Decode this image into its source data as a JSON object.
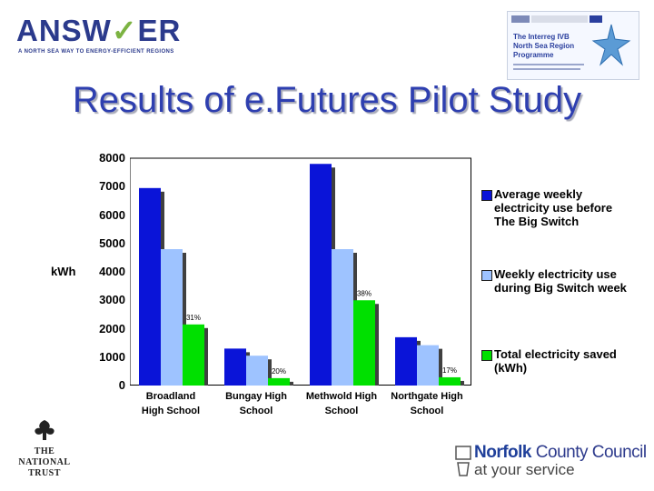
{
  "header": {
    "logo_word": "ANSW",
    "logo_word_v": "✓",
    "logo_word_end": "ER",
    "logo_tagline": "A NORTH SEA WAY TO ENERGY-EFFICIENT REGIONS",
    "interreg_title": "The Interreg IVB North Sea Region Programme"
  },
  "slide": {
    "title": "Results of e.Futures Pilot Study"
  },
  "footer": {
    "national_trust": [
      "THE",
      "NATIONAL",
      "TRUST"
    ],
    "ncc_main_bold": "Norfolk",
    "ncc_main_rest": " County Council",
    "ncc_sub": "at your service"
  },
  "colors": {
    "before": "#0a14d8",
    "during": "#9ec3ff",
    "saved": "#00e000"
  },
  "chart_data": {
    "type": "bar",
    "ylabel": "kWh",
    "ylim": [
      0,
      8000
    ],
    "yticks": [
      "0",
      "1000",
      "2000",
      "3000",
      "4000",
      "5000",
      "6000",
      "7000",
      "8000"
    ],
    "ytick_values": [
      0,
      1000,
      2000,
      3000,
      4000,
      5000,
      6000,
      7000,
      8000
    ],
    "categories": [
      [
        "Broadland",
        "High School"
      ],
      [
        "Bungay High",
        "School"
      ],
      [
        "Methwold High",
        "School"
      ],
      [
        "Northgate High",
        "School"
      ]
    ],
    "series": [
      {
        "name": "Average weekly electricity use before The Big Switch",
        "values": [
          6950,
          1300,
          7800,
          1700
        ]
      },
      {
        "name": "Weekly electricity use during Big Switch week",
        "values": [
          4800,
          1050,
          4800,
          1420
        ]
      },
      {
        "name": "Total electricity saved (kWh)",
        "values": [
          2150,
          260,
          3000,
          290
        ]
      }
    ],
    "data_labels": [
      "31%",
      "20%",
      "38%",
      "17%"
    ],
    "legend_position": "right",
    "grid": false,
    "style": "3d"
  }
}
